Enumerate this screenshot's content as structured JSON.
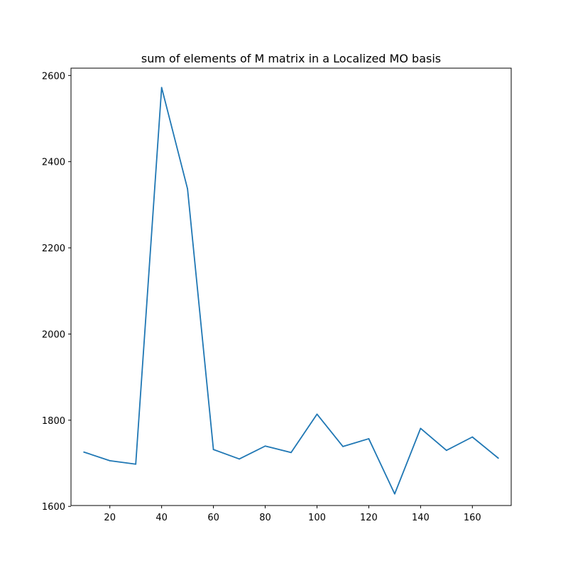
{
  "chart_data": {
    "type": "line",
    "title": "sum of elements of M matrix in a Localized MO basis",
    "xlabel": "",
    "ylabel": "",
    "xlim": [
      5,
      175
    ],
    "ylim": [
      1602,
      2617
    ],
    "xticks": [
      20,
      40,
      60,
      80,
      100,
      120,
      140,
      160
    ],
    "yticks": [
      1600,
      1800,
      2000,
      2200,
      2400,
      2600
    ],
    "grid": false,
    "series": [
      {
        "color": "#1f77b4",
        "x": [
          10,
          20,
          30,
          40,
          50,
          60,
          70,
          80,
          90,
          100,
          110,
          120,
          130,
          140,
          150,
          160,
          170
        ],
        "y": [
          1726,
          1706,
          1698,
          2572,
          2337,
          1732,
          1710,
          1740,
          1725,
          1814,
          1739,
          1757,
          1629,
          1781,
          1730,
          1761,
          1712
        ]
      }
    ]
  }
}
